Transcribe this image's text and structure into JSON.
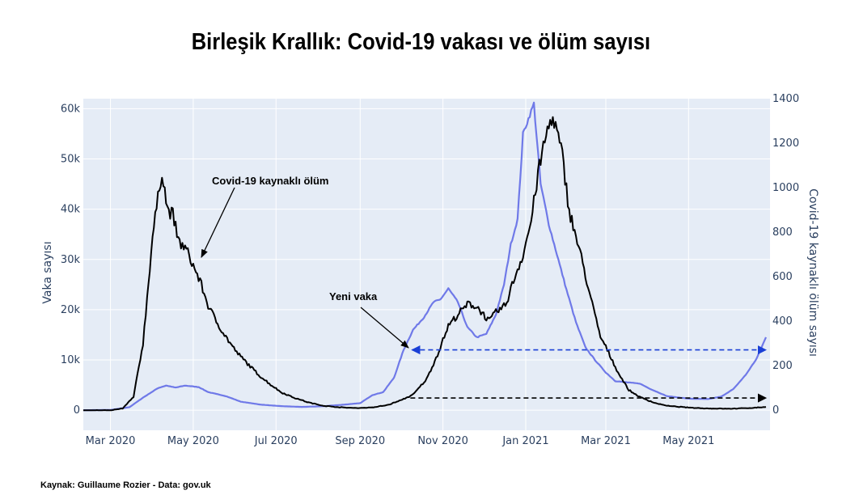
{
  "title": "Birleşik Krallık: Covid-19 vakası ve ölüm sayısı",
  "source": "Kaynak: Guillaume Rozier - Data: gov.uk",
  "colors": {
    "plot_bg": "#e5ecf6",
    "grid": "#ffffff",
    "cases": "#6f79e8",
    "deaths": "#000000",
    "arrow_blue": "#1a3fd6",
    "arrow_black": "#000000"
  },
  "chart_data": {
    "type": "line",
    "title": "Birleşik Krallık: Covid-19 vakası ve ölüm sayısı",
    "x_range": [
      "2020-02-10",
      "2021-06-30"
    ],
    "x_ticks": [
      {
        "date": "2020-03-01",
        "label": "Mar 2020"
      },
      {
        "date": "2020-05-01",
        "label": "May 2020"
      },
      {
        "date": "2020-07-01",
        "label": "Jul 2020"
      },
      {
        "date": "2020-09-01",
        "label": "Sep 2020"
      },
      {
        "date": "2020-11-01",
        "label": "Nov 2020"
      },
      {
        "date": "2021-01-01",
        "label": "Jan 2021"
      },
      {
        "date": "2021-03-01",
        "label": "Mar 2021"
      },
      {
        "date": "2021-05-01",
        "label": "May 2021"
      }
    ],
    "y_left": {
      "label": "Vaka sayısı",
      "range": [
        -4000,
        62000
      ],
      "ticks": [
        0,
        10000,
        20000,
        30000,
        40000,
        50000,
        60000
      ],
      "tick_labels": [
        "0",
        "10k",
        "20k",
        "30k",
        "40k",
        "50k",
        "60k"
      ]
    },
    "y_right": {
      "label": "Covid-19 kaynaklı ölüm sayısı",
      "range": [
        -90,
        1400
      ],
      "ticks": [
        0,
        200,
        400,
        600,
        800,
        1000,
        1200,
        1400
      ],
      "tick_labels": [
        "0",
        "200",
        "400",
        "600",
        "800",
        "1000",
        "1200",
        "1400"
      ]
    },
    "grid": true,
    "series": [
      {
        "name": "Yeni vaka",
        "axis": "left",
        "points": [
          [
            "2020-02-10",
            0
          ],
          [
            "2020-03-01",
            50
          ],
          [
            "2020-03-15",
            600
          ],
          [
            "2020-03-25",
            2500
          ],
          [
            "2020-04-05",
            4400
          ],
          [
            "2020-04-11",
            4900
          ],
          [
            "2020-04-18",
            4500
          ],
          [
            "2020-04-25",
            4900
          ],
          [
            "2020-05-05",
            4600
          ],
          [
            "2020-05-12",
            3600
          ],
          [
            "2020-05-25",
            2800
          ],
          [
            "2020-06-05",
            1700
          ],
          [
            "2020-06-20",
            1100
          ],
          [
            "2020-07-05",
            800
          ],
          [
            "2020-07-20",
            650
          ],
          [
            "2020-08-05",
            800
          ],
          [
            "2020-08-20",
            1100
          ],
          [
            "2020-09-01",
            1400
          ],
          [
            "2020-09-10",
            3000
          ],
          [
            "2020-09-18",
            3600
          ],
          [
            "2020-09-26",
            6500
          ],
          [
            "2020-10-03",
            12000
          ],
          [
            "2020-10-10",
            16000
          ],
          [
            "2020-10-18",
            18500
          ],
          [
            "2020-10-25",
            21500
          ],
          [
            "2020-10-30",
            22000
          ],
          [
            "2020-11-05",
            24200
          ],
          [
            "2020-11-12",
            21500
          ],
          [
            "2020-11-19",
            16500
          ],
          [
            "2020-11-26",
            14500
          ],
          [
            "2020-12-03",
            15200
          ],
          [
            "2020-12-10",
            19000
          ],
          [
            "2020-12-16",
            25000
          ],
          [
            "2020-12-21",
            33000
          ],
          [
            "2020-12-26",
            38000
          ],
          [
            "2020-12-30",
            55000
          ],
          [
            "2021-01-03",
            58000
          ],
          [
            "2021-01-07",
            61000
          ],
          [
            "2021-01-12",
            45000
          ],
          [
            "2021-01-18",
            37000
          ],
          [
            "2021-01-24",
            31000
          ],
          [
            "2021-01-31",
            24000
          ],
          [
            "2021-02-07",
            17500
          ],
          [
            "2021-02-14",
            12500
          ],
          [
            "2021-02-21",
            10000
          ],
          [
            "2021-03-01",
            7500
          ],
          [
            "2021-03-08",
            5800
          ],
          [
            "2021-03-18",
            5500
          ],
          [
            "2021-03-26",
            5300
          ],
          [
            "2021-04-03",
            4200
          ],
          [
            "2021-04-15",
            2800
          ],
          [
            "2021-05-01",
            2300
          ],
          [
            "2021-05-15",
            2200
          ],
          [
            "2021-05-25",
            2700
          ],
          [
            "2021-06-03",
            4200
          ],
          [
            "2021-06-12",
            7000
          ],
          [
            "2021-06-20",
            10200
          ],
          [
            "2021-06-27",
            14500
          ]
        ]
      },
      {
        "name": "Covid-19 kaynaklı ölüm",
        "axis": "right",
        "points": [
          [
            "2020-02-10",
            0
          ],
          [
            "2020-03-01",
            0
          ],
          [
            "2020-03-10",
            8
          ],
          [
            "2020-03-18",
            60
          ],
          [
            "2020-03-25",
            300
          ],
          [
            "2020-04-01",
            780
          ],
          [
            "2020-04-05",
            950
          ],
          [
            "2020-04-08",
            1080
          ],
          [
            "2020-04-12",
            900
          ],
          [
            "2020-04-16",
            880
          ],
          [
            "2020-04-20",
            760
          ],
          [
            "2020-04-26",
            720
          ],
          [
            "2020-05-01",
            650
          ],
          [
            "2020-05-06",
            580
          ],
          [
            "2020-05-12",
            470
          ],
          [
            "2020-05-18",
            400
          ],
          [
            "2020-05-25",
            330
          ],
          [
            "2020-06-02",
            260
          ],
          [
            "2020-06-10",
            210
          ],
          [
            "2020-06-18",
            160
          ],
          [
            "2020-06-26",
            120
          ],
          [
            "2020-07-05",
            80
          ],
          [
            "2020-07-15",
            55
          ],
          [
            "2020-07-25",
            35
          ],
          [
            "2020-08-05",
            20
          ],
          [
            "2020-08-20",
            12
          ],
          [
            "2020-09-01",
            10
          ],
          [
            "2020-09-12",
            14
          ],
          [
            "2020-09-22",
            25
          ],
          [
            "2020-10-01",
            45
          ],
          [
            "2020-10-10",
            70
          ],
          [
            "2020-10-20",
            140
          ],
          [
            "2020-10-28",
            250
          ],
          [
            "2020-11-05",
            380
          ],
          [
            "2020-11-12",
            430
          ],
          [
            "2020-11-20",
            480
          ],
          [
            "2020-11-27",
            460
          ],
          [
            "2020-12-05",
            400
          ],
          [
            "2020-12-10",
            440
          ],
          [
            "2020-12-17",
            470
          ],
          [
            "2020-12-24",
            600
          ],
          [
            "2020-12-30",
            700
          ],
          [
            "2021-01-05",
            850
          ],
          [
            "2021-01-10",
            1060
          ],
          [
            "2021-01-15",
            1210
          ],
          [
            "2021-01-20",
            1320
          ],
          [
            "2021-01-24",
            1250
          ],
          [
            "2021-01-28",
            1140
          ],
          [
            "2021-02-02",
            900
          ],
          [
            "2021-02-07",
            780
          ],
          [
            "2021-02-12",
            660
          ],
          [
            "2021-02-18",
            500
          ],
          [
            "2021-02-25",
            330
          ],
          [
            "2021-03-03",
            260
          ],
          [
            "2021-03-10",
            170
          ],
          [
            "2021-03-18",
            90
          ],
          [
            "2021-03-26",
            60
          ],
          [
            "2021-04-05",
            35
          ],
          [
            "2021-04-15",
            20
          ],
          [
            "2021-05-01",
            12
          ],
          [
            "2021-05-15",
            8
          ],
          [
            "2021-06-01",
            7
          ],
          [
            "2021-06-15",
            10
          ],
          [
            "2021-06-27",
            15
          ]
        ]
      }
    ],
    "annotations": [
      {
        "text": "Covid-19 kaynaklı ölüm",
        "points_to": "Covid-19 kaynaklı ölüm"
      },
      {
        "text": "Yeni vaka",
        "points_to": "Yeni vaka"
      }
    ],
    "reference_arrows": [
      {
        "color": "blue",
        "from_date": "2020-10-08",
        "to_date": "2021-06-27",
        "value": 12000,
        "axis": "left",
        "style": "dashed, double-headed"
      },
      {
        "color": "black",
        "from_date": "2020-10-08",
        "to_date": "2021-06-27",
        "value": 55,
        "axis": "right",
        "style": "dashed, right-pointing"
      }
    ]
  }
}
